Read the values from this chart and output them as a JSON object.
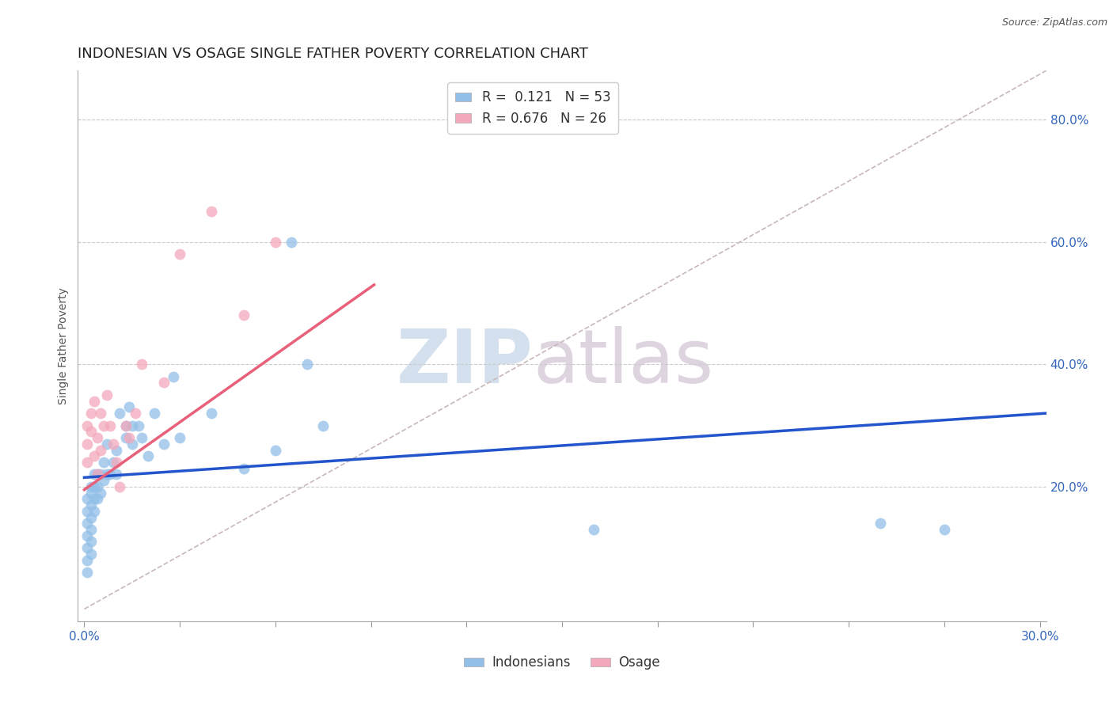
{
  "title": "INDONESIAN VS OSAGE SINGLE FATHER POVERTY CORRELATION CHART",
  "source": "Source: ZipAtlas.com",
  "ylabel": "Single Father Poverty",
  "xlim": [
    -0.002,
    0.302
  ],
  "ylim": [
    -0.02,
    0.88
  ],
  "yticks_right": [
    0.2,
    0.4,
    0.6,
    0.8
  ],
  "ytick_right_labels": [
    "20.0%",
    "40.0%",
    "60.0%",
    "80.0%"
  ],
  "R_blue": 0.121,
  "N_blue": 53,
  "R_pink": 0.676,
  "N_pink": 26,
  "blue_color": "#92bfe8",
  "pink_color": "#f4a8bb",
  "blue_line_color": "#2255cc",
  "pink_line_color": "#e8607a",
  "diag_line_color": "#c8b8b8",
  "watermark_zip_color": "#c8d5e8",
  "watermark_atlas_color": "#d0c8d8",
  "grid_color": "#cccccc",
  "background_color": "#ffffff",
  "title_fontsize": 13,
  "axis_label_fontsize": 10,
  "tick_fontsize": 11,
  "legend_fontsize": 12,
  "blue_line_x": [
    0.0,
    0.302
  ],
  "blue_line_y": [
    0.215,
    0.32
  ],
  "pink_line_x": [
    0.0,
    0.091
  ],
  "pink_line_y": [
    0.195,
    0.53
  ],
  "diag_line_x": [
    0.0,
    0.302
  ],
  "diag_line_y": [
    0.0,
    0.88
  ],
  "indonesians_x": [
    0.001,
    0.001,
    0.001,
    0.001,
    0.001,
    0.001,
    0.001,
    0.002,
    0.002,
    0.002,
    0.002,
    0.002,
    0.002,
    0.002,
    0.003,
    0.003,
    0.003,
    0.003,
    0.004,
    0.004,
    0.004,
    0.005,
    0.005,
    0.006,
    0.006,
    0.007,
    0.007,
    0.008,
    0.009,
    0.01,
    0.01,
    0.011,
    0.013,
    0.013,
    0.014,
    0.015,
    0.015,
    0.017,
    0.018,
    0.02,
    0.022,
    0.025,
    0.028,
    0.03,
    0.04,
    0.05,
    0.06,
    0.065,
    0.07,
    0.075,
    0.16,
    0.25,
    0.27
  ],
  "indonesians_y": [
    0.18,
    0.16,
    0.14,
    0.12,
    0.1,
    0.08,
    0.06,
    0.2,
    0.19,
    0.17,
    0.15,
    0.13,
    0.11,
    0.09,
    0.22,
    0.2,
    0.18,
    0.16,
    0.22,
    0.2,
    0.18,
    0.22,
    0.19,
    0.24,
    0.21,
    0.27,
    0.22,
    0.22,
    0.24,
    0.26,
    0.22,
    0.32,
    0.28,
    0.3,
    0.33,
    0.27,
    0.3,
    0.3,
    0.28,
    0.25,
    0.32,
    0.27,
    0.38,
    0.28,
    0.32,
    0.23,
    0.26,
    0.6,
    0.4,
    0.3,
    0.13,
    0.14,
    0.13
  ],
  "osage_x": [
    0.001,
    0.001,
    0.001,
    0.002,
    0.002,
    0.003,
    0.003,
    0.004,
    0.004,
    0.005,
    0.005,
    0.006,
    0.007,
    0.008,
    0.009,
    0.01,
    0.011,
    0.013,
    0.014,
    0.016,
    0.018,
    0.025,
    0.03,
    0.04,
    0.05,
    0.06
  ],
  "osage_y": [
    0.3,
    0.27,
    0.24,
    0.32,
    0.29,
    0.34,
    0.25,
    0.28,
    0.22,
    0.32,
    0.26,
    0.3,
    0.35,
    0.3,
    0.27,
    0.24,
    0.2,
    0.3,
    0.28,
    0.32,
    0.4,
    0.37,
    0.58,
    0.65,
    0.48,
    0.6
  ]
}
